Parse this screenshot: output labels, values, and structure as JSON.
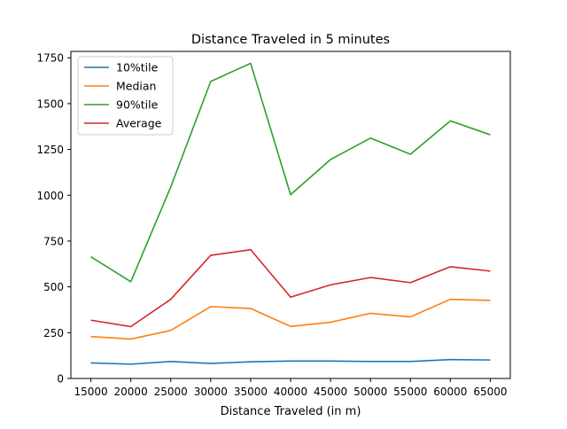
{
  "chart_data": {
    "type": "line",
    "title": "Distance Traveled in 5 minutes",
    "xlabel": "Distance Traveled (in m)",
    "ylabel": "",
    "x": [
      15000,
      20000,
      25000,
      30000,
      35000,
      40000,
      45000,
      50000,
      55000,
      60000,
      65000
    ],
    "xticks": [
      15000,
      20000,
      25000,
      30000,
      35000,
      40000,
      45000,
      50000,
      55000,
      60000,
      65000
    ],
    "yticks": [
      0,
      250,
      500,
      750,
      1000,
      1250,
      1500,
      1750
    ],
    "xlim": [
      12500,
      67500
    ],
    "ylim": [
      0,
      1785
    ],
    "grid": false,
    "legend_position": "upper-left",
    "series": [
      {
        "name": "10%tile",
        "color": "#1f77b4",
        "values": [
          85,
          78,
          93,
          82,
          91,
          95,
          95,
          93,
          93,
          103,
          101
        ]
      },
      {
        "name": "Median",
        "color": "#ff7f0e",
        "values": [
          229,
          215,
          262,
          392,
          382,
          284,
          307,
          356,
          336,
          432,
          426
        ]
      },
      {
        "name": "90%tile",
        "color": "#2ca02c",
        "values": [
          664,
          528,
          1045,
          1621,
          1720,
          1003,
          1195,
          1312,
          1224,
          1406,
          1330
        ]
      },
      {
        "name": "Average",
        "color": "#d62728",
        "values": [
          318,
          283,
          432,
          672,
          703,
          444,
          511,
          551,
          523,
          610,
          586
        ]
      }
    ]
  }
}
